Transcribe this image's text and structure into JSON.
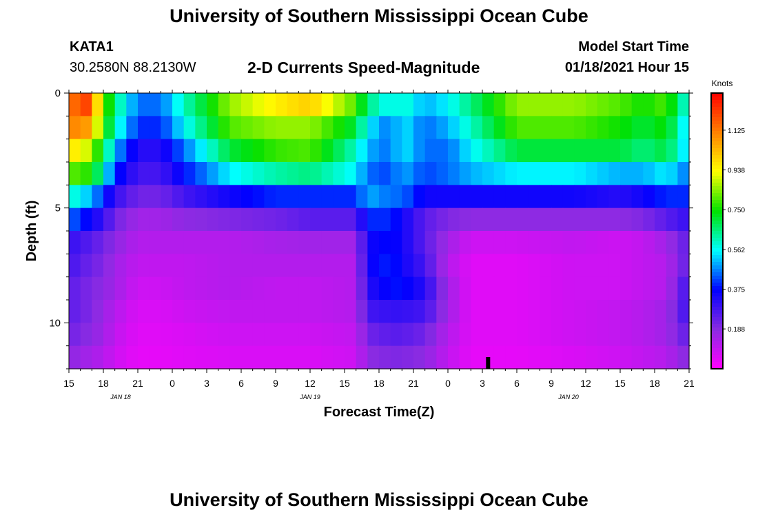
{
  "page": {
    "title": "University of Southern Mississippi Ocean Cube",
    "footer_title": "University of Southern Mississippi Ocean Cube",
    "station_id": "KATA1",
    "coordinates": "30.2580N 88.2130W",
    "subtitle": "2-D Currents Speed-Magnitude",
    "model_start_label": "Model Start Time",
    "model_start_value": "01/18/2021 Hour 15"
  },
  "colors": {
    "background": "#ffffff",
    "axis": "#000000",
    "marker": "#000000",
    "colormap": [
      "#ff00ff",
      "#8a2be2",
      "#0000ff",
      "#00ffff",
      "#00e000",
      "#ffff00",
      "#ff8000",
      "#ff0000"
    ]
  },
  "chart_data": {
    "type": "heatmap",
    "title": "2-D Currents Speed-Magnitude",
    "xlabel": "Forecast Time(Z)",
    "ylabel": "Depth (ft)",
    "x_ticks": [
      "15",
      "18",
      "21",
      "0",
      "3",
      "6",
      "9",
      "12",
      "15",
      "18",
      "21",
      "0",
      "3",
      "6",
      "9",
      "12",
      "15",
      "18",
      "21"
    ],
    "date_labels": [
      {
        "text": "JAN 18",
        "forecast_hour": 4.5
      },
      {
        "text": "JAN 19",
        "forecast_hour": 21
      },
      {
        "text": "JAN 20",
        "forecast_hour": 43.5
      }
    ],
    "xlim_forecast_hours": [
      0,
      54
    ],
    "y_ticks": [
      "0",
      "5",
      "10"
    ],
    "ylim_depth_ft": [
      0,
      12
    ],
    "colorbar": {
      "label": "Knots",
      "tick_labels": [
        "1.125",
        "0.938",
        "0.750",
        "0.562",
        "0.375",
        "0.188"
      ],
      "tick_values": [
        1.125,
        0.938,
        0.75,
        0.562,
        0.375,
        0.188
      ],
      "range": [
        0.0,
        1.3
      ]
    },
    "depth_rows_ft": [
      0.5,
      1.5,
      2.5,
      3.5,
      4.5,
      5.5,
      6.5,
      7.5,
      8.5,
      9.5,
      10.5,
      11.5
    ],
    "time_knots_hours": [
      0,
      1,
      2,
      3,
      4,
      6,
      8,
      10,
      14,
      18,
      21,
      25,
      26,
      28,
      29,
      31,
      33,
      35,
      39,
      44,
      48,
      50,
      52,
      54
    ],
    "speed_knots": [
      [
        1.0,
        1.3,
        1.1,
        0.85,
        0.65,
        0.45,
        0.45,
        0.6,
        0.85,
        0.95,
        1.0,
        0.8,
        0.65,
        0.55,
        0.6,
        0.5,
        0.55,
        0.65,
        0.85,
        0.85,
        0.8,
        0.75,
        0.8,
        0.55
      ],
      [
        1.05,
        1.15,
        1.0,
        0.8,
        0.6,
        0.4,
        0.4,
        0.55,
        0.8,
        0.85,
        0.85,
        0.7,
        0.55,
        0.45,
        0.55,
        0.45,
        0.5,
        0.6,
        0.8,
        0.8,
        0.75,
        0.7,
        0.75,
        0.5
      ],
      [
        0.95,
        0.95,
        0.85,
        0.7,
        0.5,
        0.32,
        0.32,
        0.45,
        0.7,
        0.78,
        0.8,
        0.6,
        0.5,
        0.45,
        0.55,
        0.45,
        0.45,
        0.55,
        0.7,
        0.7,
        0.7,
        0.65,
        0.7,
        0.5
      ],
      [
        0.8,
        0.8,
        0.75,
        0.6,
        0.4,
        0.28,
        0.28,
        0.38,
        0.55,
        0.62,
        0.65,
        0.55,
        0.45,
        0.42,
        0.5,
        0.42,
        0.45,
        0.5,
        0.55,
        0.55,
        0.5,
        0.5,
        0.55,
        0.45
      ],
      [
        0.6,
        0.55,
        0.5,
        0.4,
        0.3,
        0.22,
        0.22,
        0.28,
        0.35,
        0.4,
        0.4,
        0.4,
        0.5,
        0.45,
        0.45,
        0.35,
        0.35,
        0.35,
        0.35,
        0.35,
        0.32,
        0.35,
        0.4,
        0.4
      ],
      [
        0.45,
        0.4,
        0.35,
        0.3,
        0.22,
        0.15,
        0.15,
        0.18,
        0.2,
        0.22,
        0.25,
        0.25,
        0.4,
        0.4,
        0.35,
        0.25,
        0.2,
        0.18,
        0.18,
        0.18,
        0.18,
        0.2,
        0.25,
        0.3
      ],
      [
        0.3,
        0.28,
        0.25,
        0.22,
        0.18,
        0.12,
        0.12,
        0.12,
        0.12,
        0.14,
        0.15,
        0.15,
        0.35,
        0.38,
        0.35,
        0.25,
        0.15,
        0.08,
        0.08,
        0.1,
        0.08,
        0.1,
        0.15,
        0.25
      ],
      [
        0.28,
        0.25,
        0.22,
        0.2,
        0.15,
        0.1,
        0.1,
        0.1,
        0.12,
        0.12,
        0.12,
        0.12,
        0.35,
        0.4,
        0.35,
        0.28,
        0.12,
        0.05,
        0.05,
        0.08,
        0.08,
        0.1,
        0.12,
        0.25
      ],
      [
        0.25,
        0.22,
        0.2,
        0.18,
        0.15,
        0.08,
        0.08,
        0.1,
        0.12,
        0.1,
        0.1,
        0.12,
        0.32,
        0.38,
        0.38,
        0.32,
        0.15,
        0.05,
        0.05,
        0.08,
        0.08,
        0.1,
        0.12,
        0.3
      ],
      [
        0.25,
        0.22,
        0.2,
        0.16,
        0.12,
        0.06,
        0.06,
        0.08,
        0.1,
        0.1,
        0.1,
        0.12,
        0.28,
        0.3,
        0.3,
        0.28,
        0.15,
        0.05,
        0.05,
        0.08,
        0.1,
        0.12,
        0.15,
        0.3
      ],
      [
        0.22,
        0.2,
        0.18,
        0.15,
        0.1,
        0.05,
        0.05,
        0.06,
        0.08,
        0.08,
        0.08,
        0.1,
        0.22,
        0.25,
        0.25,
        0.22,
        0.12,
        0.05,
        0.05,
        0.08,
        0.1,
        0.12,
        0.15,
        0.25
      ],
      [
        0.18,
        0.16,
        0.14,
        0.12,
        0.08,
        0.04,
        0.04,
        0.05,
        0.06,
        0.06,
        0.06,
        0.08,
        0.18,
        0.2,
        0.2,
        0.18,
        0.1,
        0.04,
        0.04,
        0.06,
        0.08,
        0.1,
        0.12,
        0.2
      ]
    ],
    "marker_forecast_hour": 36.5
  }
}
